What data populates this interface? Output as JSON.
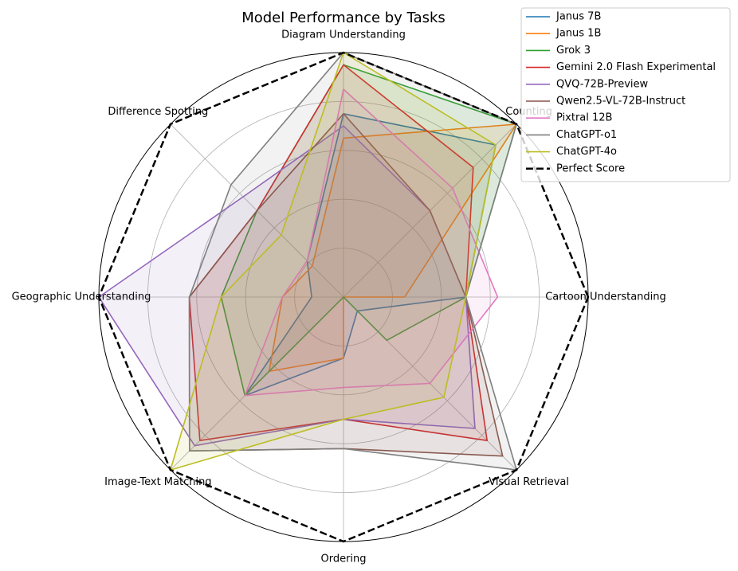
{
  "chart_data": {
    "type": "radar",
    "title": "Model Performance by Tasks",
    "categories": [
      "Cartoon Understanding",
      "Counting",
      "Diagram Understanding",
      "Difference Spotting",
      "Geographic Understanding",
      "Image-Text Matching",
      "Ordering",
      "Visual Retrieval"
    ],
    "ylim": [
      0,
      1
    ],
    "yticks": [
      0.2,
      0.4,
      0.6,
      0.8
    ],
    "grid": true,
    "fill_alpha": 0.1,
    "legend": "upper right",
    "series": [
      {
        "name": "Janus 7B",
        "color": "#1f77b4",
        "values": [
          0.5,
          0.88,
          0.75,
          0.21,
          0.13,
          0.57,
          0.25,
          0.08
        ]
      },
      {
        "name": "Janus 1B",
        "color": "#ff7f0e",
        "values": [
          0.25,
          1.0,
          0.65,
          0.18,
          0.25,
          0.43,
          0.25,
          0
        ]
      },
      {
        "name": "Grok 3",
        "color": "#2ca02c",
        "values": [
          0.5,
          1.0,
          0.95,
          0.5,
          0.5,
          0.57,
          0,
          0.25
        ]
      },
      {
        "name": "Gemini 2.0 Flash Experimental",
        "color": "#d62728",
        "values": [
          0.5,
          0.75,
          0.95,
          0.5,
          0.63,
          0.83,
          0.5,
          0.83
        ]
      },
      {
        "name": "QVQ-72B-Preview",
        "color": "#9467bd",
        "values": [
          0.5,
          0.5,
          0.7,
          0.58,
          1.0,
          0.86,
          0.5,
          0.76
        ]
      },
      {
        "name": "Qwen2.5-VL-72B-Instruct",
        "color": "#8c564b",
        "values": [
          0.5,
          0.5,
          0.75,
          0.5,
          0.63,
          0.89,
          0.62,
          0.92
        ]
      },
      {
        "name": "Pixtral 12B",
        "color": "#e377c2",
        "values": [
          0.63,
          0.63,
          0.85,
          0.21,
          0.25,
          0.57,
          0.37,
          0.5
        ]
      },
      {
        "name": "ChatGPT-o1",
        "color": "#7f7f7f",
        "values": [
          0.5,
          1.0,
          1.0,
          0.65,
          0.63,
          0.89,
          0.62,
          1.0
        ]
      },
      {
        "name": "ChatGPT-4o",
        "color": "#bcbd22",
        "values": [
          0.5,
          0.88,
          1.0,
          0.36,
          0.5,
          1.0,
          0.5,
          0.58
        ]
      },
      {
        "name": "Perfect Score",
        "color": "#000000",
        "linestyle": "dashed",
        "values": [
          1,
          1,
          1,
          1,
          1,
          1,
          1,
          1
        ]
      }
    ]
  }
}
